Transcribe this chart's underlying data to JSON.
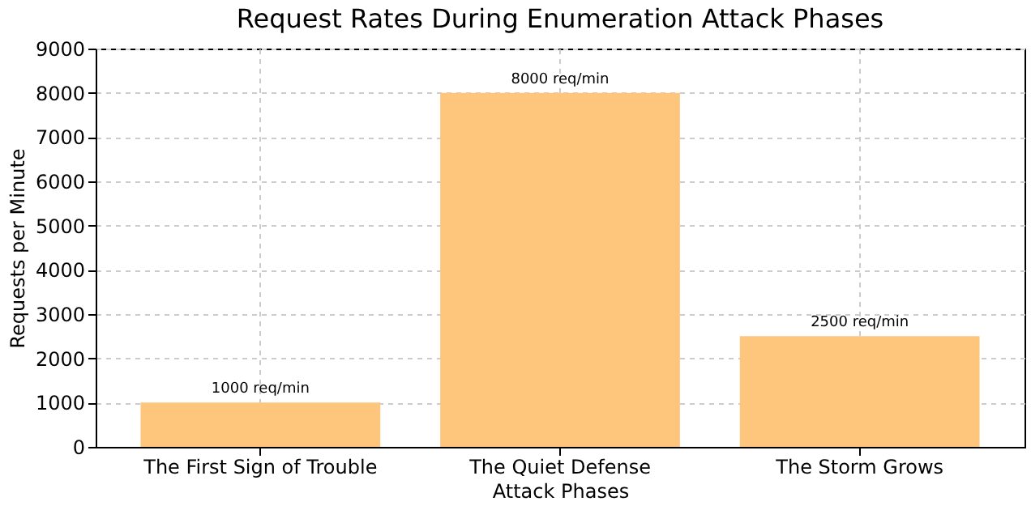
{
  "chart_data": {
    "type": "bar",
    "title": "Request Rates During Enumeration Attack Phases",
    "xlabel": "Attack Phases",
    "ylabel": "Requests per Minute",
    "categories": [
      "The First Sign of Trouble",
      "The Quiet Defense",
      "The Storm Grows"
    ],
    "values": [
      1000,
      8000,
      2500
    ],
    "color": "#fec57c",
    "value_labels": [
      "1000 req/min",
      "8000 req/min",
      "2500 req/min"
    ],
    "ylim": [
      0,
      9000
    ],
    "yticks": [
      0,
      1000,
      2000,
      3000,
      4000,
      5000,
      6000,
      7000,
      8000,
      9000
    ],
    "grid": true
  }
}
